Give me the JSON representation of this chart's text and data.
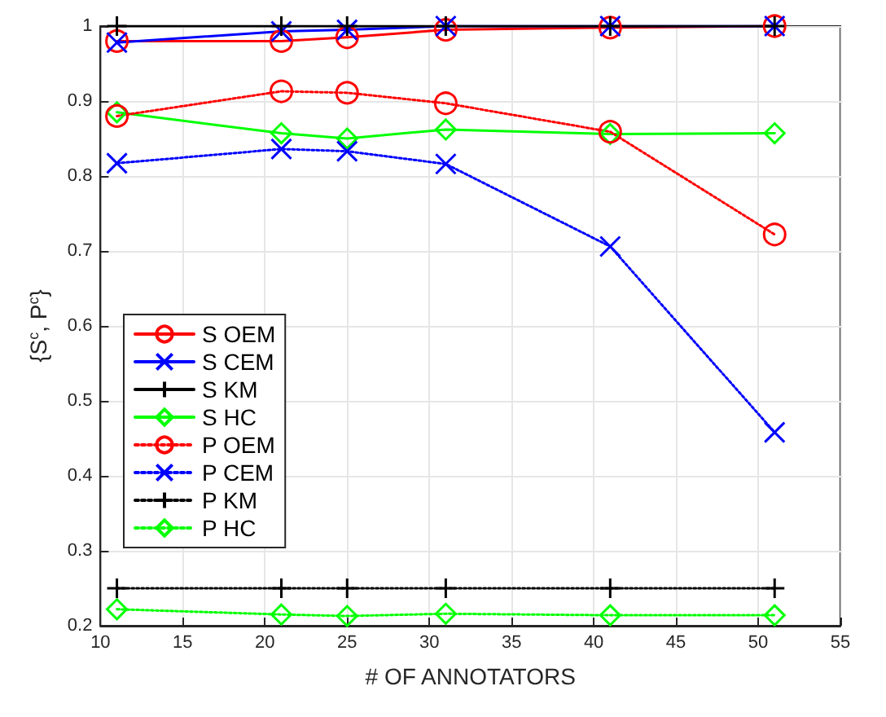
{
  "chart_data": {
    "type": "line",
    "xlabel": "# OF ANNOTATORS",
    "ylabel": "{S$^{c}$, P$^{c}$}",
    "x": [
      11,
      21,
      25,
      31,
      41,
      51
    ],
    "xlim": [
      10,
      55
    ],
    "xticks": [
      10,
      15,
      20,
      25,
      30,
      35,
      40,
      45,
      50,
      55
    ],
    "ylim": [
      0.2,
      1
    ],
    "yticks": [
      0.2,
      0.3,
      0.4,
      0.5,
      0.6,
      0.7,
      0.8,
      0.9,
      1
    ],
    "grid": true,
    "legend": "left",
    "series": [
      {
        "name": "S OEM",
        "color": "#ff0000",
        "marker": "circle",
        "line_style": "solid",
        "values": [
          0.98,
          0.98,
          0.985,
          0.995,
          0.998,
          1.0
        ]
      },
      {
        "name": "S CEM",
        "color": "#0000ff",
        "marker": "cross",
        "line_style": "solid",
        "values": [
          0.978,
          0.993,
          0.995,
          1.0,
          1.0,
          1.0
        ]
      },
      {
        "name": "S KM",
        "color": "#000000",
        "marker": "plus",
        "line_style": "solid",
        "values": [
          1.0,
          1.0,
          1.0,
          1.0,
          1.0,
          1.0
        ]
      },
      {
        "name": "S HC",
        "color": "#00ff00",
        "marker": "diamond",
        "line_style": "solid",
        "values": [
          0.885,
          0.857,
          0.85,
          0.862,
          0.856,
          0.857
        ]
      },
      {
        "name": "P OEM",
        "color": "#ff0000",
        "marker": "circle",
        "line_style": "dotted",
        "values": [
          0.88,
          0.913,
          0.911,
          0.897,
          0.859,
          0.722
        ]
      },
      {
        "name": "P CEM",
        "color": "#0000ff",
        "marker": "cross",
        "line_style": "dotted",
        "values": [
          0.817,
          0.836,
          0.833,
          0.816,
          0.706,
          0.458
        ]
      },
      {
        "name": "P KM",
        "color": "#000000",
        "marker": "plus",
        "line_style": "dotted",
        "values": [
          0.25,
          0.25,
          0.25,
          0.25,
          0.25,
          0.25
        ]
      },
      {
        "name": "P HC",
        "color": "#00ff00",
        "marker": "diamond",
        "line_style": "dotted",
        "values": [
          0.222,
          0.215,
          0.213,
          0.216,
          0.214,
          0.214
        ]
      }
    ]
  }
}
